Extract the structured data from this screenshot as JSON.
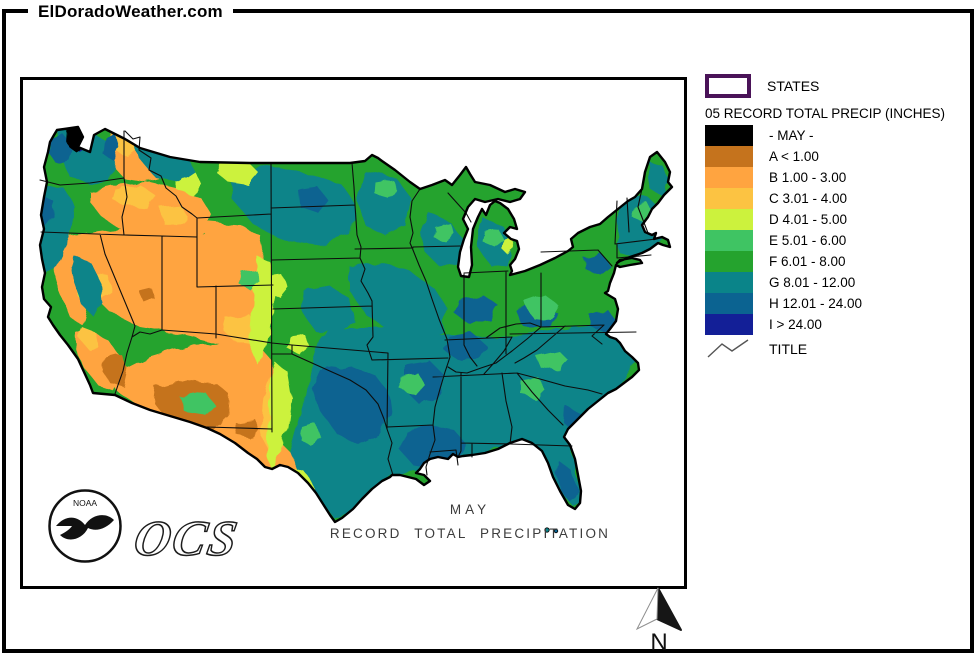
{
  "header": {
    "site_title": "ElDoradoWeather.com"
  },
  "legend": {
    "states_label": "STATES",
    "states_border_color": "#4a1358",
    "title": "05 RECORD TOTAL PRECIP (INCHES)",
    "title_symbol_label": "TITLE",
    "items": [
      {
        "key": "MAY",
        "label": "- MAY -",
        "color": "#000000"
      },
      {
        "key": "A",
        "label": "A < 1.00",
        "color": "#c5731d"
      },
      {
        "key": "B",
        "label": "B 1.00 - 3.00",
        "color": "#ffa440"
      },
      {
        "key": "C",
        "label": "C 3.01 - 4.00",
        "color": "#fcc342"
      },
      {
        "key": "D",
        "label": "D 4.01 - 5.00",
        "color": "#ccf23d"
      },
      {
        "key": "E",
        "label": "E 5.01 - 6.00",
        "color": "#3fc463"
      },
      {
        "key": "F",
        "label": "F 6.01 - 8.00",
        "color": "#25a32e"
      },
      {
        "key": "G",
        "label": "G 8.01 - 12.00",
        "color": "#0a8489"
      },
      {
        "key": "H",
        "label": "H 12.01 - 24.00",
        "color": "#0b6391"
      },
      {
        "key": "I",
        "label": "I > 24.00",
        "color": "#131f97"
      }
    ]
  },
  "map": {
    "title_line1": "MAY",
    "title_line2": "RECORD TOTAL PRECIPITATION",
    "noaa_label": "NOAA",
    "ocs_label": "OCS"
  },
  "compass": {
    "north_label": "N"
  }
}
